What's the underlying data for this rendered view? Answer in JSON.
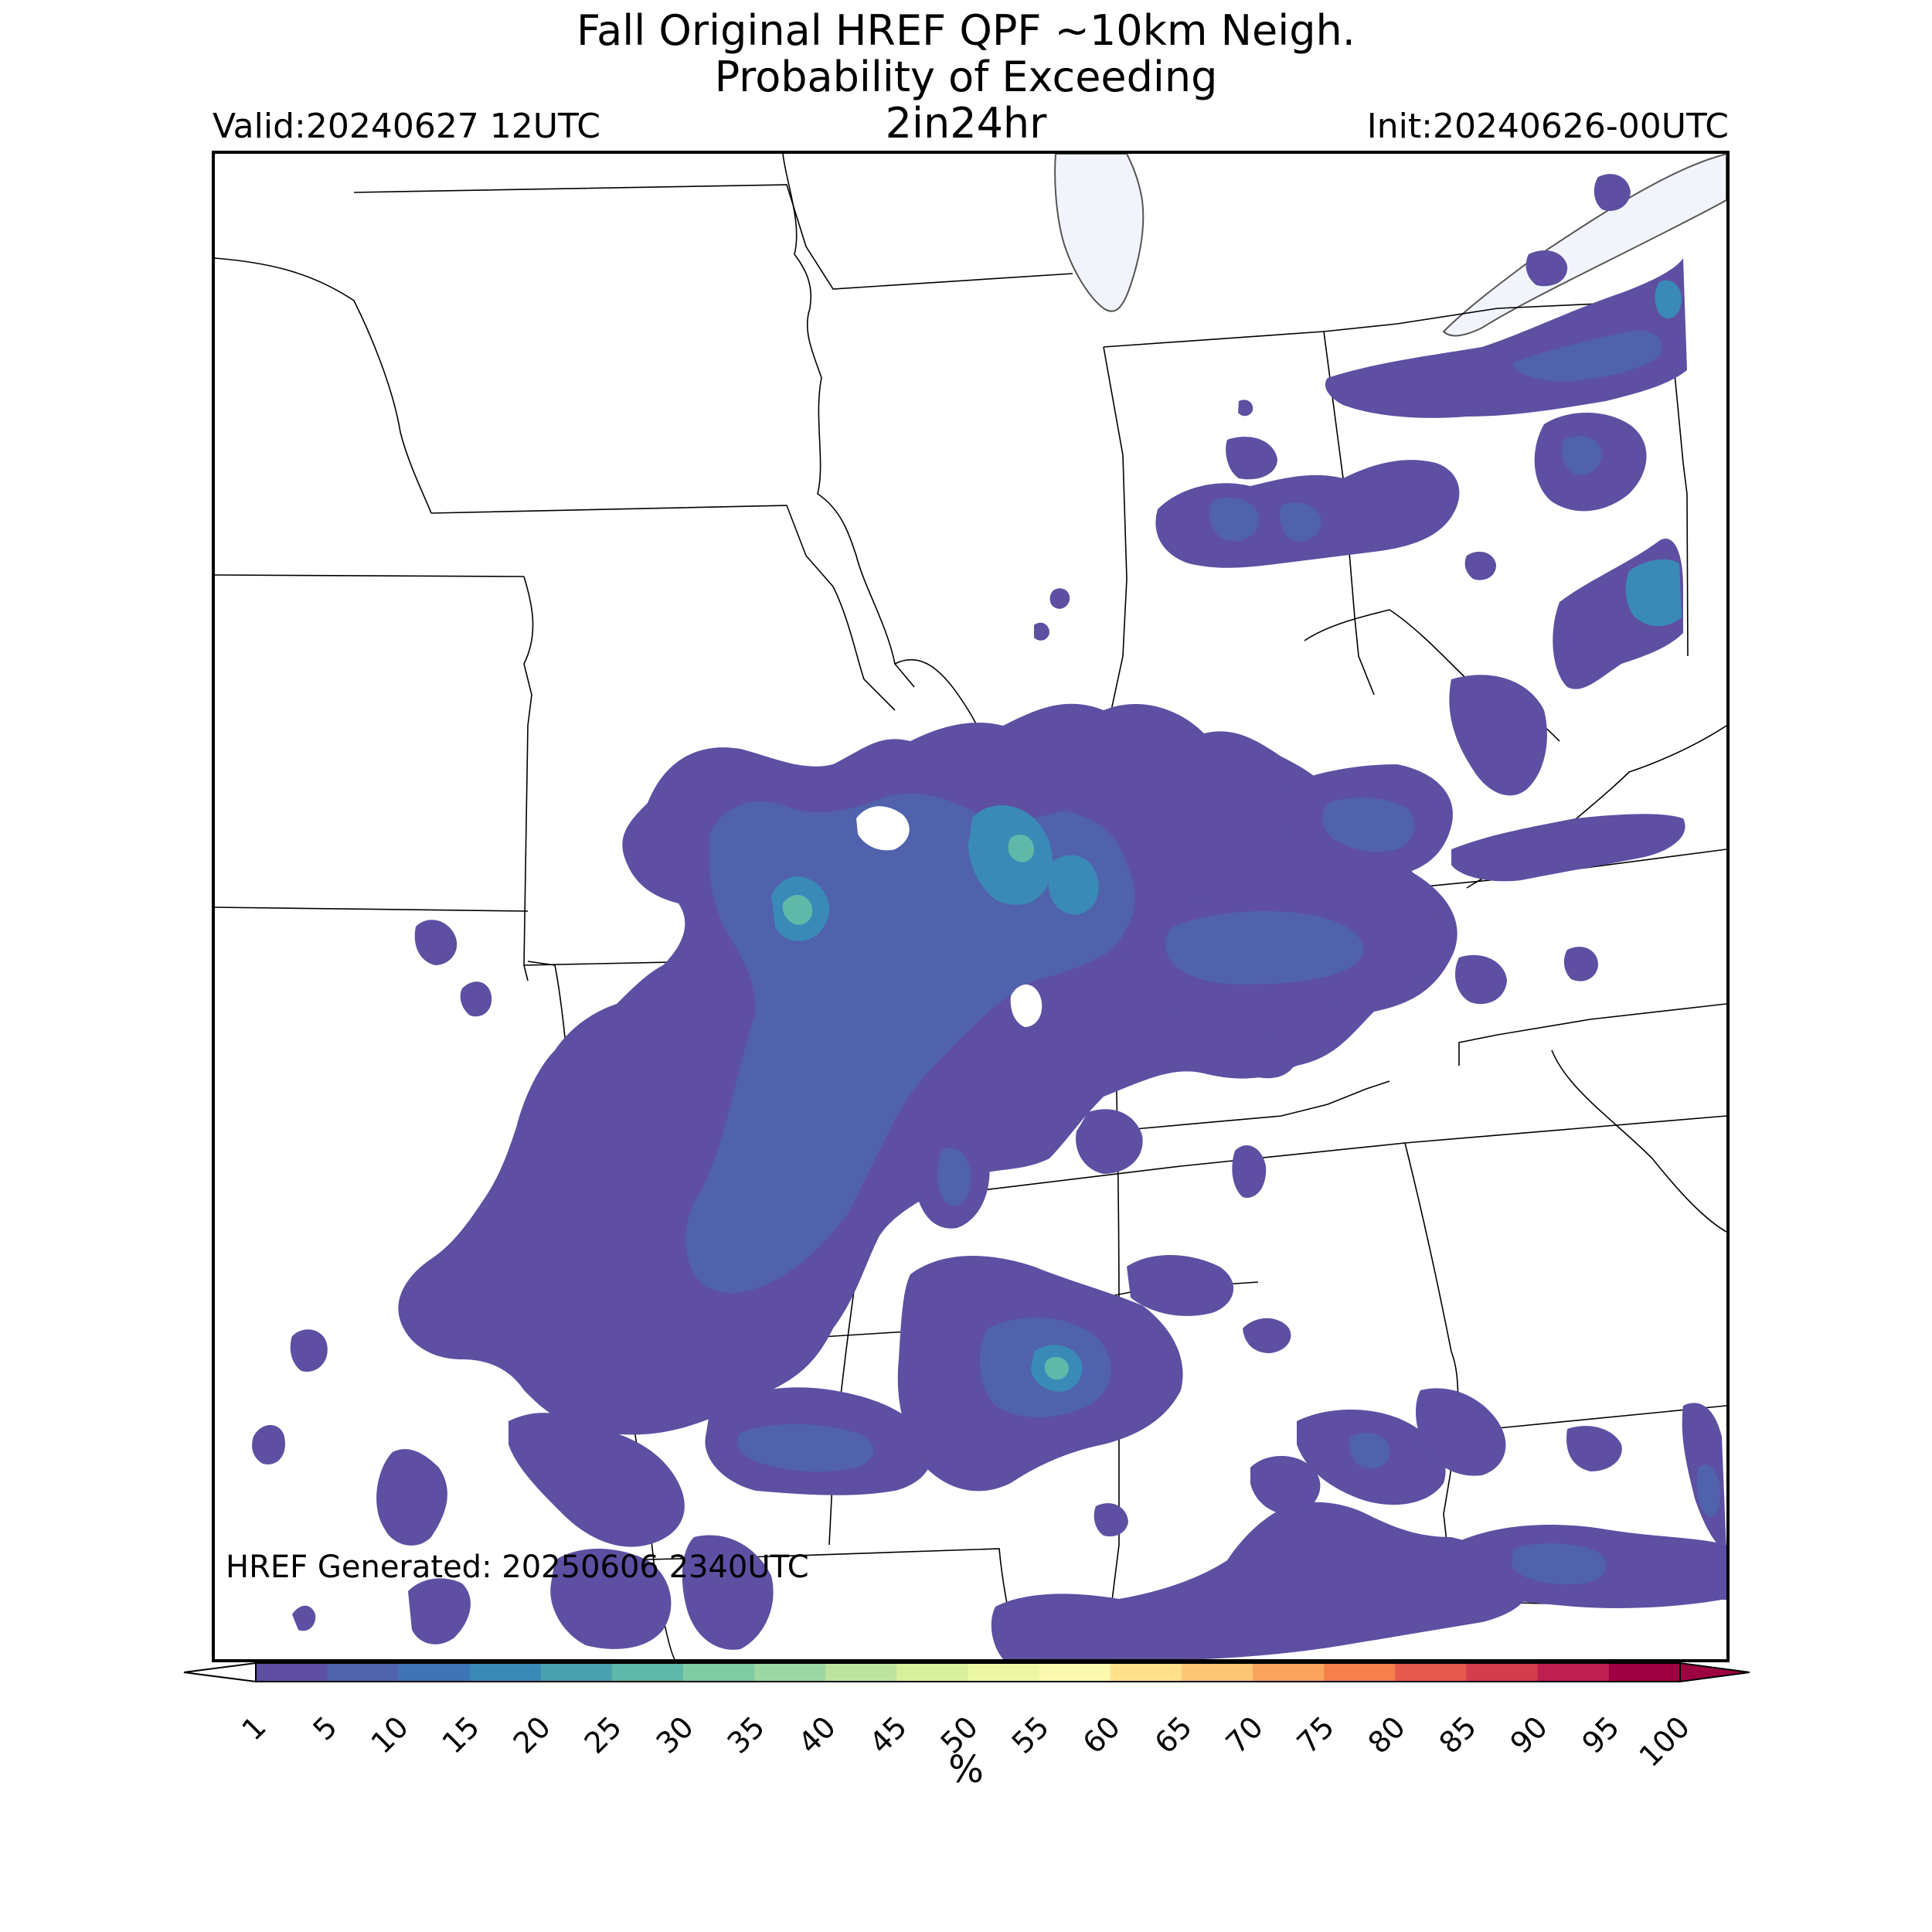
{
  "title": {
    "line1": "Fall Original HREF QPF ~10km Neigh.",
    "line2": "Probability of Exceeding",
    "line3": "2in24hr"
  },
  "valid": "Valid:20240627 12UTC",
  "init": "Init:20240626-00UTC",
  "generated": "HREF Generated: 20250606 2340UTC",
  "colorbar": {
    "unit": "%",
    "ticks": [
      "1",
      "5",
      "10",
      "15",
      "20",
      "25",
      "30",
      "35",
      "40",
      "45",
      "50",
      "55",
      "60",
      "65",
      "70",
      "75",
      "80",
      "85",
      "90",
      "95",
      "100"
    ],
    "colors": [
      "#5e4fa2",
      "#4f62ab",
      "#4174b5",
      "#3a8ab7",
      "#49a1b0",
      "#60b8a8",
      "#7ecba4",
      "#9dd7a4",
      "#bce4a0",
      "#d8ef9b",
      "#ebf7a2",
      "#fbf8b0",
      "#fee08b",
      "#fdc576",
      "#fca45f",
      "#f67f4c",
      "#e6594c",
      "#d33d4e",
      "#bd2050",
      "#9e0142"
    ]
  },
  "map": {
    "lake_color": "#f1f5fb",
    "boundary_color": "#000000",
    "rain_levels": {
      "low": "#5e4fa2",
      "mid": "#4f62ab",
      "high": "#3a8ab7",
      "peak": "#60b8a8"
    }
  }
}
